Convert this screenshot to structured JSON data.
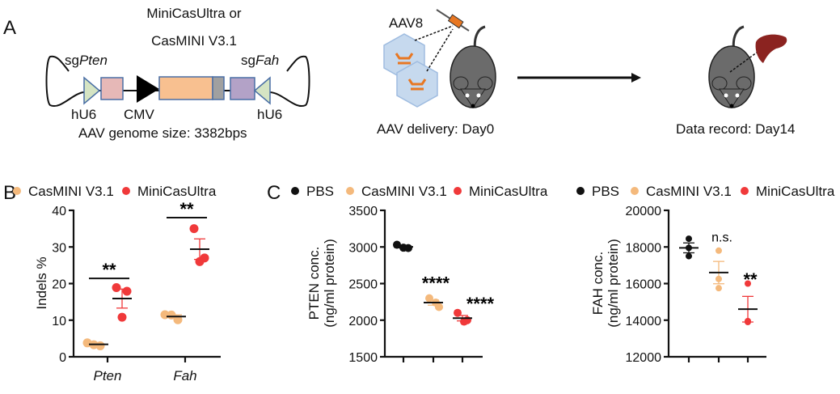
{
  "panels": {
    "a": "A",
    "b": "B",
    "c": "C"
  },
  "diagram": {
    "cas_label_line1": "MiniCasUltra or",
    "cas_label_line2": "CasMINI V3.1",
    "sg_left_prefix": "sg",
    "sg_left_gene": "Pten",
    "sg_right_prefix": "sg",
    "sg_right_gene": "Fah",
    "promoter_left": "hU6",
    "promoter_mid": "CMV",
    "promoter_right": "hU6",
    "genome_size": "AAV genome size: 3382bps",
    "virus_label": "AAV8",
    "delivery_label": "AAV delivery: Day0",
    "record_label": "Data record: Day14",
    "colors": {
      "hu6": "#D5E4C3",
      "sgrna_left": "#E6B8B7",
      "cas": "#F8C090",
      "tag": "#A0A0A0",
      "sgrna_right": "#B3A2C7",
      "mouse": "#6B6B6B",
      "virus": "#C6D9EE",
      "liver": "#8B2320"
    }
  },
  "chart_data": [
    {
      "type": "scatter",
      "panel": "B",
      "ylabel": "Indels %",
      "ylim": [
        0,
        40
      ],
      "yticks": [
        "0",
        "10",
        "20",
        "30",
        "40"
      ],
      "categories": [
        "Pten",
        "Fah"
      ],
      "legend": [
        "CasMINI V3.1",
        "MiniCasUltra"
      ],
      "legend_position": "top",
      "series": [
        {
          "name": "CasMINI V3.1",
          "color": "#F4B97C",
          "points": [
            [
              3.8,
              3.3,
              3.0
            ],
            [
              11.5,
              11.4,
              10.1
            ]
          ],
          "mean": [
            3.4,
            11.0
          ],
          "sem": [
            0.2,
            0.45
          ]
        },
        {
          "name": "MiniCasUltra",
          "color": "#F0393A",
          "points": [
            [
              18.9,
              17.9,
              10.8
            ],
            [
              35.0,
              27.0,
              26.0
            ]
          ],
          "mean": [
            15.9,
            29.4
          ],
          "sem": [
            2.6,
            2.8
          ]
        }
      ],
      "significance": [
        {
          "category": "Pten",
          "label": "**",
          "y": 21.4
        },
        {
          "category": "Fah",
          "label": "**",
          "y": 38
        }
      ]
    },
    {
      "type": "scatter",
      "panel": "C",
      "ylabel_line1": "PTEN conc.",
      "ylabel_line2": "(ng/ml protein)",
      "ylim": [
        1500,
        3500
      ],
      "yticks": [
        "1500",
        "2000",
        "2500",
        "3000",
        "3500"
      ],
      "legend": [
        "PBS",
        "CasMINI V3.1",
        "MiniCasUltra"
      ],
      "legend_position": "top",
      "series": [
        {
          "name": "PBS",
          "color": "#111111",
          "points": [
            3030,
            2990,
            2985
          ],
          "mean": 3002,
          "sem": 14
        },
        {
          "name": "CasMINI V3.1",
          "color": "#F4B97C",
          "points": [
            2300,
            2240,
            2180
          ],
          "mean": 2240,
          "sem": 35
        },
        {
          "name": "MiniCasUltra",
          "color": "#F0393A",
          "points": [
            2100,
            2000,
            1980
          ],
          "mean": 2027,
          "sem": 37
        }
      ],
      "significance": [
        {
          "group": 1,
          "label": "****"
        },
        {
          "group": 2,
          "label": "****"
        }
      ]
    },
    {
      "type": "scatter",
      "panel": "C",
      "ylabel_line1": "FAH conc.",
      "ylabel_line2": "(ng/ml protein)",
      "ylim": [
        12000,
        20000
      ],
      "yticks": [
        "12000",
        "14000",
        "16000",
        "18000",
        "20000"
      ],
      "legend": [
        "PBS",
        "CasMINI V3.1",
        "MiniCasUltra"
      ],
      "legend_position": "top",
      "series": [
        {
          "name": "PBS",
          "color": "#111111",
          "points": [
            18450,
            17950,
            17500
          ],
          "mean": 17950,
          "sem": 270
        },
        {
          "name": "CasMINI V3.1",
          "color": "#F4B97C",
          "points": [
            17800,
            16250,
            15750
          ],
          "mean": 16600,
          "sem": 610
        },
        {
          "name": "MiniCasUltra",
          "color": "#F0393A",
          "points": [
            16000,
            13950,
            13900
          ],
          "mean": 14600,
          "sem": 700
        }
      ],
      "significance": [
        {
          "group": 1,
          "label": "n.s."
        },
        {
          "group": 2,
          "label": "**"
        }
      ]
    }
  ]
}
